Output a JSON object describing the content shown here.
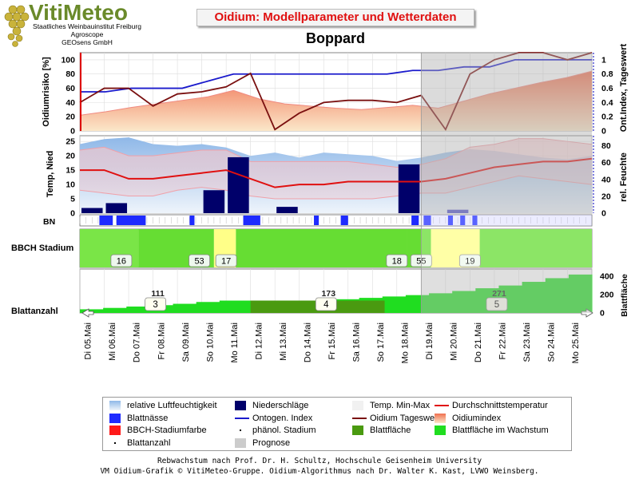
{
  "header": {
    "logo_title": "VitiMeteo",
    "logo_lines": [
      "Staatliches Weinbauinstitut Freiburg",
      "Agroscope",
      "GEOsens GmbH"
    ],
    "banner_title": "Oidium: Modellparameter und Wetterdaten",
    "station": "Boppard"
  },
  "colors": {
    "risk_fill_top": "#f07050",
    "risk_fill_bottom": "#fbe7c9",
    "ontogen": "#1a1acc",
    "oidium_tageswert": "#7a1010",
    "humidity": "#8fb8e8",
    "precip": "#00006a",
    "temp_band": "#f4c7cb",
    "temp_mean": "#e01010",
    "blattnaesse": "#1e2bff",
    "bbch_green": "#66dd33",
    "bbch_yellow": "#ffff88",
    "leaf_dark": "#4a9a10",
    "leaf_growth": "#20dd20",
    "prognose": "#cccccc"
  },
  "chart_data": {
    "type": "line",
    "x": [
      "Di 05.Mai",
      "Mi 06.Mai",
      "Do 07.Mai",
      "Fr 08.Mai",
      "Sa 09.Mai",
      "So 10.Mai",
      "Mo 11.Mai",
      "Di 12.Mai",
      "Mi 13.Mai",
      "Do 14.Mai",
      "Fr 15.Mai",
      "Sa 16.Mai",
      "So 17.Mai",
      "Mo 18.Mai",
      "Di 19.Mai",
      "Mi 20.Mai",
      "Do 21.Mai",
      "Fr 22.Mai",
      "Sa 23.Mai",
      "So 24.Mai",
      "Mo 25.Mai"
    ],
    "prognose_start": "Di 19.Mai",
    "panel_risk": {
      "ylabel_left": "Oidiumrisiko [%]",
      "ylabel_right": "Ont.Index, Tageswert",
      "ylim_left": [
        0,
        110
      ],
      "ylim_right": [
        0,
        1.1
      ],
      "yticks_left": [
        "0",
        "20",
        "40",
        "60",
        "80",
        "100"
      ],
      "yticks_right": [
        "0",
        "0.2",
        "0.4",
        "0.6",
        "0.8",
        "1"
      ],
      "series": [
        {
          "name": "Oidiumindex",
          "axis": "left",
          "values": [
            22,
            27,
            33,
            38,
            43,
            48,
            57,
            45,
            38,
            35,
            32,
            30,
            33,
            36,
            32,
            42,
            52,
            60,
            68,
            75,
            84
          ]
        },
        {
          "name": "Ontogen. Index",
          "axis": "right",
          "values": [
            0.55,
            0.55,
            0.6,
            0.6,
            0.6,
            0.7,
            0.8,
            0.8,
            0.8,
            0.8,
            0.8,
            0.8,
            0.8,
            0.85,
            0.85,
            0.9,
            0.9,
            1.0,
            1.0,
            1.0,
            1.0
          ]
        },
        {
          "name": "Oidium Tageswert",
          "axis": "right",
          "values": [
            0.4,
            0.6,
            0.6,
            0.35,
            0.52,
            0.55,
            0.62,
            0.81,
            0.02,
            0.25,
            0.4,
            0.43,
            0.43,
            0.4,
            0.5,
            0.02,
            0.8,
            1.0,
            1.1,
            1.1,
            1.0,
            1.1
          ]
        }
      ]
    },
    "panel_weather": {
      "ylabel_left": "Temp, Nied",
      "ylabel_right": "rel. Feuchte",
      "ylim_left": [
        0,
        27
      ],
      "ylim_right": [
        0,
        92
      ],
      "yticks_left": [
        "0",
        "5",
        "10",
        "15",
        "20",
        "25"
      ],
      "yticks_right": [
        "0",
        "20",
        "40",
        "60",
        "80"
      ],
      "series": [
        {
          "name": "relative Luftfeuchtigkeit",
          "axis": "right",
          "values": [
            82,
            88,
            90,
            82,
            80,
            82,
            78,
            68,
            72,
            66,
            72,
            70,
            68,
            62,
            66,
            72,
            76,
            74,
            70,
            66,
            64,
            68
          ]
        },
        {
          "name": "Temp. Min-Max (max)",
          "axis": "left",
          "values": [
            22,
            23,
            20,
            20,
            21,
            22,
            22,
            18,
            18,
            18,
            18,
            18,
            17,
            16,
            17,
            19,
            23,
            24,
            26,
            26,
            25,
            24
          ]
        },
        {
          "name": "Temp. Min-Max (min)",
          "axis": "left",
          "values": [
            8,
            7,
            6,
            6,
            8,
            9,
            8,
            6,
            5,
            5,
            5,
            5,
            5,
            6,
            7,
            7,
            9,
            11,
            13,
            12,
            11,
            10
          ]
        },
        {
          "name": "Durchschnittstemperatur",
          "axis": "left",
          "values": [
            15,
            15,
            12,
            12,
            13,
            14,
            15,
            12,
            9,
            10,
            10,
            11,
            11,
            11,
            11,
            12,
            14,
            16,
            17,
            18,
            18,
            19
          ]
        },
        {
          "name": "Niederschläge",
          "axis": "left",
          "type": "bar",
          "values": [
            1.8,
            3.5,
            0,
            0,
            0,
            8,
            19.5,
            0,
            2.2,
            0,
            0,
            0,
            0,
            17,
            0,
            1.2,
            0,
            0,
            0,
            0,
            0
          ]
        }
      ]
    },
    "panel_bn": {
      "label": "BN",
      "segments": [
        [
          0.8,
          1.35
        ],
        [
          1.5,
          2.7
        ],
        [
          4.5,
          4.7
        ],
        [
          6.7,
          7.4
        ],
        [
          9.6,
          9.8
        ],
        [
          10.7,
          11.0
        ],
        [
          13.6,
          13.9
        ],
        [
          14.1,
          14.4
        ],
        [
          15.1,
          15.3
        ],
        [
          15.6,
          15.8
        ],
        [
          16.1,
          16.3
        ]
      ]
    },
    "panel_bbch": {
      "label": "BBCH Stadium",
      "stages": [
        {
          "from": 0,
          "to": 2.4,
          "color": "#70e03a",
          "label": "16",
          "at": 1.7
        },
        {
          "from": 2.4,
          "to": 5.5,
          "color": "#66dd33",
          "label": "53",
          "at": 4.9
        },
        {
          "from": 5.5,
          "to": 6.4,
          "color": "#ffff88",
          "label": "17",
          "at": 6.0
        },
        {
          "from": 6.4,
          "to": 13.4,
          "color": "#66dd33",
          "label": "18",
          "at": 13.0
        },
        {
          "from": 13.4,
          "to": 14.4,
          "color": "#66dd33",
          "label": "55",
          "at": 14.0
        },
        {
          "from": 14.4,
          "to": 16.4,
          "color": "#ffff88",
          "label": "19",
          "at": 16.0
        },
        {
          "from": 16.4,
          "to": 21.0,
          "color": "#66dd33",
          "label": "",
          "at": 0
        }
      ]
    },
    "panel_leaf": {
      "label": "Blattanzahl",
      "ylabel_right": "Blattfläche",
      "yticks_right": [
        "0",
        "200",
        "400"
      ],
      "ylim_right": [
        0,
        480
      ],
      "blattflaeche": [
        40,
        55,
        70,
        85,
        100,
        120,
        135,
        135,
        135,
        135,
        135,
        150,
        165,
        180,
        195,
        215,
        240,
        270,
        300,
        340,
        380,
        420
      ],
      "counts": [
        {
          "at": 3.1,
          "label": "3",
          "value": "111"
        },
        {
          "at": 10.1,
          "label": "4",
          "value": "173"
        },
        {
          "at": 17.1,
          "label": "5",
          "value": "271"
        }
      ]
    }
  },
  "legend": [
    {
      "label": "relative Luftfeuchtigkeit",
      "sym": "humidity"
    },
    {
      "label": "Niederschläge",
      "sym": "precip"
    },
    {
      "label": "Temp. Min-Max",
      "sym": "tempband"
    },
    {
      "label": "Durchschnittstemperatur",
      "sym": "redline"
    },
    {
      "label": "Blattnässe",
      "sym": "bn"
    },
    {
      "label": "Ontogen. Index",
      "sym": "blueline"
    },
    {
      "label": "Oidium Tageswert",
      "sym": "darkredline"
    },
    {
      "label": "Oidiumindex",
      "sym": "risk"
    },
    {
      "label": "BBCH-Stadiumfarbe",
      "sym": "bbch"
    },
    {
      "label": "phänol. Stadium",
      "sym": "dot"
    },
    {
      "label": "Blattfläche",
      "sym": "leafdark"
    },
    {
      "label": "Blattfläche im Wachstum",
      "sym": "leafgrow"
    },
    {
      "label": "Blattanzahl",
      "sym": "dot"
    },
    {
      "label": "Prognose",
      "sym": "prognose"
    }
  ],
  "footer": {
    "line1": "Rebwachstum nach Prof. Dr. H. Schultz, Hochschule Geisenheim University",
    "line2": "VM Oidium-Grafik © VitiMeteo-Gruppe. Oidium-Algorithmus nach Dr. Walter K. Kast, LVWO Weinsberg."
  }
}
